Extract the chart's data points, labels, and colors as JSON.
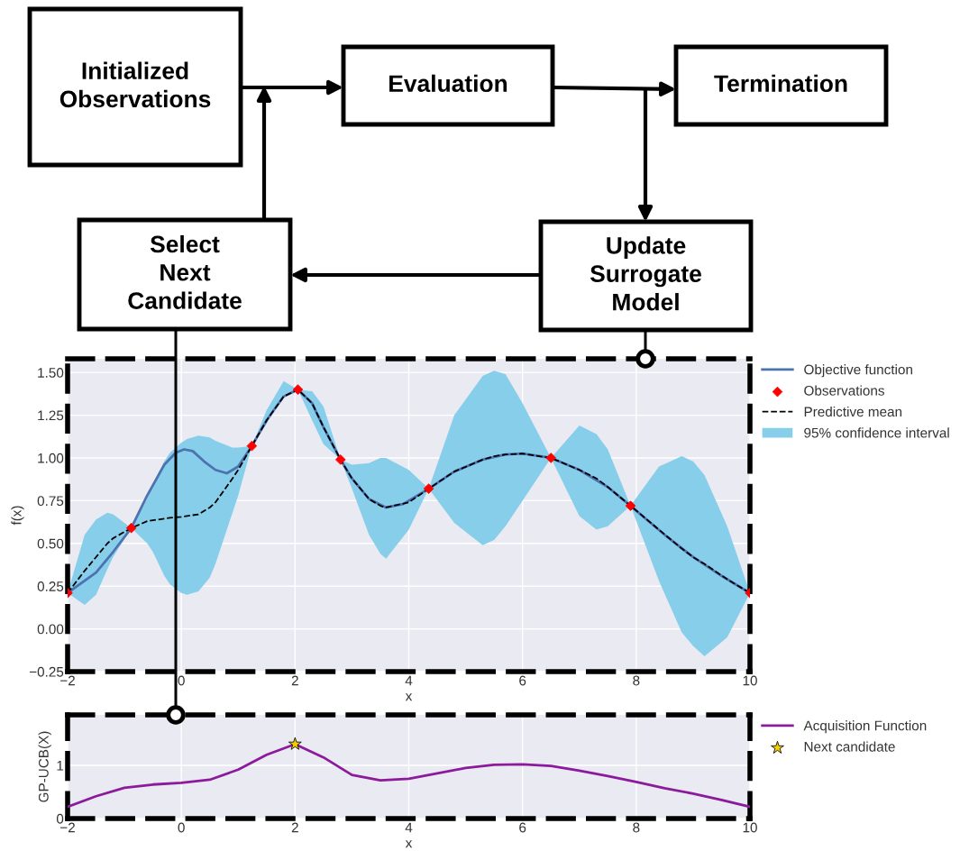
{
  "chart_data": [
    {
      "type": "other",
      "annotations": [
        "Initialized\nObservations",
        "Evaluation",
        "Termination",
        "Select\nNext\nCandidate",
        "Update\nSurrogate\nModel"
      ]
    },
    {
      "type": "line",
      "xlabel": "x",
      "ylabel": "f(x)",
      "xlim": [
        -2,
        10
      ],
      "ylim": [
        -0.25,
        1.58
      ],
      "xticks": [
        {
          "value": -2,
          "label": "−2"
        },
        0,
        2,
        4,
        6,
        8,
        10
      ],
      "yticks": [
        {
          "value": -0.25,
          "label": "−0.25"
        },
        {
          "value": 0,
          "label": "0.00"
        },
        {
          "value": 0.25,
          "label": "0.25"
        },
        {
          "value": 0.5,
          "label": "0.50"
        },
        {
          "value": 0.75,
          "label": "0.75"
        },
        {
          "value": 1,
          "label": "1.00"
        },
        {
          "value": 1.25,
          "label": "1.25"
        },
        {
          "value": 1.5,
          "label": "1.50"
        }
      ],
      "grid": true,
      "legend": "right",
      "series": [
        {
          "name": "Objective function",
          "type": "line",
          "color": "#4c72b0",
          "x": [
            -2,
            -1.5,
            -1.2,
            -0.88,
            -0.6,
            -0.3,
            -0.1,
            0.05,
            0.2,
            0.4,
            0.6,
            0.8,
            1.0,
            1.24,
            1.5,
            1.8,
            2.05,
            2.3,
            2.5,
            2.8,
            3.0,
            3.3,
            3.6,
            3.9,
            4.35,
            4.8,
            5.3,
            5.7,
            6.0,
            6.5,
            7.0,
            7.5,
            7.9,
            8.5,
            9.0,
            9.5,
            10
          ],
          "values": [
            0.21,
            0.33,
            0.45,
            0.59,
            0.78,
            0.96,
            1.03,
            1.05,
            1.04,
            0.98,
            0.93,
            0.91,
            0.95,
            1.07,
            1.22,
            1.36,
            1.4,
            1.32,
            1.18,
            0.99,
            0.88,
            0.76,
            0.71,
            0.73,
            0.82,
            0.92,
            0.99,
            1.02,
            1.025,
            1.0,
            0.93,
            0.83,
            0.72,
            0.55,
            0.42,
            0.31,
            0.21
          ]
        },
        {
          "name": "Observations",
          "type": "scatter",
          "marker": "diamond",
          "color": "#ff0000",
          "x": [
            -2,
            -0.88,
            1.24,
            2.05,
            2.8,
            4.35,
            6.5,
            7.9,
            10
          ],
          "values": [
            0.21,
            0.59,
            1.07,
            1.4,
            0.99,
            0.82,
            1.0,
            0.72,
            0.21
          ]
        },
        {
          "name": "Predictive mean",
          "type": "line",
          "line_style": "dashed",
          "color": "#000000",
          "x": [
            -2,
            -1.7,
            -1.5,
            -1.3,
            -1.2,
            -0.88,
            -0.6,
            -0.5,
            -0.3,
            -0.2,
            0,
            0.1,
            0.3,
            0.5,
            0.6,
            0.9,
            1.0,
            1.24,
            1.5,
            1.8,
            2.05,
            2.3,
            2.5,
            2.8,
            3.0,
            3.3,
            3.5,
            3.6,
            4.0,
            4.35,
            4.8,
            5.3,
            5.5,
            5.7,
            6.0,
            6.5,
            7.0,
            7.3,
            7.5,
            7.9,
            8.4,
            8.8,
            9.0,
            9.2,
            9.6,
            10
          ],
          "values": [
            0.21,
            0.34,
            0.42,
            0.5,
            0.53,
            0.59,
            0.63,
            0.635,
            0.645,
            0.65,
            0.655,
            0.66,
            0.67,
            0.71,
            0.74,
            0.88,
            0.93,
            1.07,
            1.22,
            1.36,
            1.4,
            1.32,
            1.18,
            0.99,
            0.88,
            0.76,
            0.72,
            0.71,
            0.74,
            0.82,
            0.92,
            0.99,
            1.01,
            1.02,
            1.025,
            1.0,
            0.93,
            0.88,
            0.83,
            0.72,
            0.58,
            0.47,
            0.42,
            0.38,
            0.29,
            0.21
          ]
        },
        {
          "name": "95% confidence interval",
          "type": "area",
          "color": "#87ceeb",
          "x": [
            -2,
            -1.7,
            -1.5,
            -1.3,
            -1.2,
            -0.88,
            -0.6,
            -0.5,
            -0.3,
            -0.2,
            0,
            0.1,
            0.3,
            0.5,
            0.6,
            0.9,
            1.0,
            1.24,
            1.5,
            1.8,
            2.05,
            2.3,
            2.5,
            2.8,
            3.0,
            3.3,
            3.5,
            3.6,
            4.0,
            4.35,
            4.8,
            5.3,
            5.5,
            5.7,
            6.0,
            6.5,
            7.0,
            7.3,
            7.5,
            7.9,
            8.4,
            8.8,
            9.0,
            9.2,
            9.6,
            10
          ],
          "values": [
            null,
            null,
            null,
            null,
            null,
            null,
            null,
            null,
            null,
            null,
            null,
            null,
            null,
            null,
            null,
            null,
            null,
            null,
            null,
            null,
            null,
            null,
            null,
            null,
            null,
            null,
            null,
            null,
            null,
            null,
            null,
            null,
            null,
            null,
            null,
            null,
            null,
            null,
            null,
            null,
            null,
            null,
            null,
            null,
            null,
            null
          ],
          "lower": [
            0.21,
            0.14,
            0.2,
            0.35,
            0.42,
            0.59,
            0.5,
            0.45,
            0.31,
            0.26,
            0.21,
            0.2,
            0.22,
            0.3,
            0.38,
            0.68,
            0.78,
            1.07,
            1.2,
            1.37,
            1.4,
            1.22,
            1.08,
            0.99,
            0.82,
            0.55,
            0.44,
            0.41,
            0.58,
            0.82,
            0.62,
            0.49,
            0.52,
            0.6,
            0.75,
            1.0,
            0.66,
            0.58,
            0.6,
            0.72,
            0.28,
            -0.02,
            -0.1,
            -0.16,
            -0.05,
            0.21
          ],
          "upper": [
            0.21,
            0.55,
            0.64,
            0.68,
            0.67,
            0.59,
            0.76,
            0.85,
            0.98,
            1.03,
            1.09,
            1.11,
            1.13,
            1.12,
            1.1,
            1.06,
            1.06,
            1.07,
            1.28,
            1.45,
            1.4,
            1.39,
            1.3,
            0.99,
            0.96,
            0.97,
            1.0,
            1.0,
            0.93,
            0.82,
            1.25,
            1.48,
            1.51,
            1.49,
            1.32,
            1.0,
            1.19,
            1.14,
            1.05,
            0.72,
            0.95,
            1.01,
            0.98,
            0.9,
            0.6,
            0.21
          ]
        }
      ]
    },
    {
      "type": "line",
      "xlabel": "x",
      "ylabel": "GP-UCB(X)",
      "xlim": [
        -2,
        10
      ],
      "ylim": [
        0,
        1.95
      ],
      "xticks": [
        {
          "value": -2,
          "label": "−2"
        },
        0,
        2,
        4,
        6,
        8,
        10
      ],
      "yticks": [
        0,
        1
      ],
      "grid": true,
      "legend": "right",
      "series": [
        {
          "name": "Acquisition Function",
          "type": "line",
          "color": "#8b1a9c",
          "x": [
            -2,
            -1.5,
            -1,
            -0.5,
            0,
            0.5,
            1,
            1.5,
            2,
            2.5,
            3,
            3.5,
            4,
            4.5,
            5,
            5.5,
            6,
            6.5,
            7,
            7.5,
            8,
            8.5,
            9,
            9.5,
            10
          ],
          "values": [
            0.22,
            0.42,
            0.58,
            0.64,
            0.67,
            0.73,
            0.92,
            1.2,
            1.4,
            1.15,
            0.82,
            0.72,
            0.75,
            0.85,
            0.95,
            1.01,
            1.02,
            0.99,
            0.9,
            0.8,
            0.69,
            0.57,
            0.47,
            0.35,
            0.22
          ]
        },
        {
          "name": "Next candidate",
          "type": "scatter",
          "marker": "star",
          "color": "#f5d000",
          "x": [
            2
          ],
          "values": [
            1.4
          ]
        }
      ]
    }
  ]
}
